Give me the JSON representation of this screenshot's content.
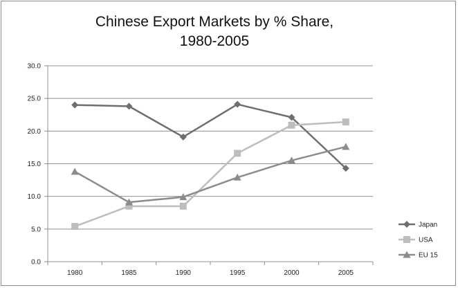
{
  "chart_data": {
    "type": "line",
    "title_line1": "Chinese Export Markets by % Share,",
    "title_line2": "1980-2005",
    "xlabel": "",
    "ylabel": "",
    "categories": [
      "1980",
      "1985",
      "1990",
      "1995",
      "2000",
      "2005"
    ],
    "ylim": [
      0,
      30
    ],
    "yticks": [
      0,
      5,
      10,
      15,
      20,
      25,
      30
    ],
    "ytick_labels": [
      "0.0",
      "5.0",
      "10.0",
      "15.0",
      "20.0",
      "25.0",
      "30.0"
    ],
    "grid": "horizontal",
    "legend_position": "right",
    "series": [
      {
        "name": "Japan",
        "values": [
          24.0,
          23.8,
          19.1,
          24.1,
          22.1,
          14.3
        ],
        "color": "#6e6e6e",
        "marker": "diamond"
      },
      {
        "name": "USA",
        "values": [
          5.4,
          8.5,
          8.5,
          16.6,
          20.9,
          21.4
        ],
        "color": "#bdbdbd",
        "marker": "square"
      },
      {
        "name": "EU 15",
        "values": [
          13.8,
          9.1,
          9.9,
          12.9,
          15.5,
          17.6
        ],
        "color": "#8c8c8c",
        "marker": "triangle"
      }
    ]
  }
}
